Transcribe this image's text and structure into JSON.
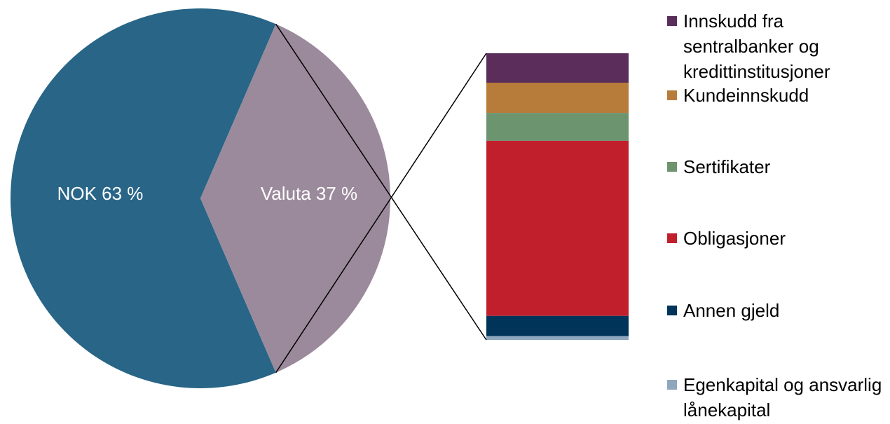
{
  "chart_data": [
    {
      "type": "pie",
      "categories": [
        "NOK",
        "Valuta"
      ],
      "values": [
        63,
        37
      ],
      "value_labels": [
        "NOK 63 %",
        "Valuta 37 %"
      ],
      "colors": [
        "#286587",
        "#9b8a9b"
      ]
    },
    {
      "type": "stacked-bar",
      "series": [
        {
          "name": "Innskudd fra sentralbanker og kredittinstitusjoner",
          "color": "#5a2d5a",
          "values": [
            3.8
          ]
        },
        {
          "name": "Kundeinnskudd",
          "color": "#b87c3a",
          "values": [
            3.9
          ]
        },
        {
          "name": "Sertifikater",
          "color": "#6b946f",
          "values": [
            3.6
          ]
        },
        {
          "name": "Obligasjoner",
          "color": "#c21f2c",
          "values": [
            22.6
          ]
        },
        {
          "name": "Annen gjeld",
          "color": "#003459",
          "values": [
            2.6
          ]
        },
        {
          "name": "Egenkapital og ansvarlig lånekapital",
          "color": "#8fa7bd",
          "values": [
            0.5
          ]
        }
      ]
    }
  ]
}
